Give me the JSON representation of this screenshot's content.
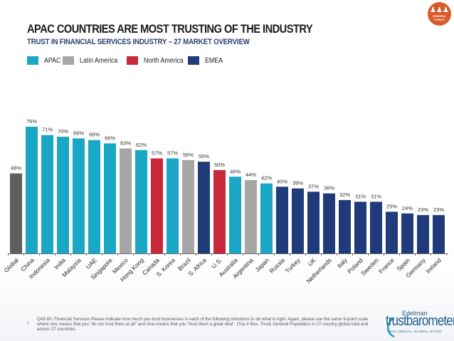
{
  "header": {
    "title": "APAC COUNTRIES ARE MOST TRUSTING OF THE INDUSTRY",
    "subtitle": "TRUST IN FINANCIAL SERVICES INDUSTRY – 27 MARKET OVERVIEW"
  },
  "badge": {
    "icon": "people-group-icon",
    "label_line1": "GENERAL",
    "label_line2": "PUBLIC",
    "color": "#d8592a"
  },
  "legend": [
    {
      "label": "APAC",
      "color": "#1aa7c6"
    },
    {
      "label": "Latin America",
      "color": "#a6a6a6"
    },
    {
      "label": "North America",
      "color": "#c8283a"
    },
    {
      "label": "EMEA",
      "color": "#1f3b7a"
    }
  ],
  "chart_data": {
    "type": "bar",
    "title": "APAC COUNTRIES ARE MOST TRUSTING OF THE INDUSTRY",
    "subtitle": "TRUST IN FINANCIAL SERVICES INDUSTRY – 27 MARKET OVERVIEW",
    "xlabel": "",
    "ylabel": "",
    "ylim": [
      0,
      100
    ],
    "grid": false,
    "legend_position": "top-left",
    "value_suffix": "%",
    "categories": [
      "Global",
      "China",
      "Indonesia",
      "India",
      "Malaysia",
      "UAE",
      "Singapore",
      "Mexico",
      "Hong Kong",
      "Canada",
      "S. Korea",
      "Brazil",
      "S. Africa",
      "U.S.",
      "Australia",
      "Argentina",
      "Japan",
      "Russia",
      "Turkey",
      "UK",
      "Netherlands",
      "Italy",
      "Poland",
      "Sweden",
      "France",
      "Spain",
      "Germany",
      "Ireland"
    ],
    "values": [
      48,
      76,
      71,
      70,
      69,
      68,
      66,
      63,
      62,
      57,
      57,
      56,
      55,
      50,
      46,
      44,
      42,
      40,
      39,
      37,
      36,
      32,
      31,
      31,
      25,
      24,
      23,
      23
    ],
    "regions": [
      "Global",
      "APAC",
      "APAC",
      "APAC",
      "APAC",
      "APAC",
      "APAC",
      "Latin America",
      "APAC",
      "North America",
      "APAC",
      "Latin America",
      "EMEA",
      "North America",
      "APAC",
      "Latin America",
      "APAC",
      "EMEA",
      "EMEA",
      "EMEA",
      "EMEA",
      "EMEA",
      "EMEA",
      "EMEA",
      "EMEA",
      "EMEA",
      "EMEA",
      "EMEA"
    ],
    "region_colors": {
      "Global": "#5f5f5f",
      "APAC": "#1aa7c6",
      "Latin America": "#a6a6a6",
      "North America": "#c8283a",
      "EMEA": "#1f3b7a"
    }
  },
  "footer": {
    "page_number": "8",
    "footnote": "Q43-60. Financial Services Please indicate how much you trust businesses in each of the following industries to do what is right.  Again, please use the same 9-point scale where one means that you “do not trust them at all” and nine means that you “trust them a great deal”. (Top 4 Box, Trust) General Population in 27-country global total and across 27 countries",
    "brand": "Edelman",
    "product": "trustbarometer",
    "product_sub": "2014 ANNUAL GLOBAL STUDY"
  }
}
